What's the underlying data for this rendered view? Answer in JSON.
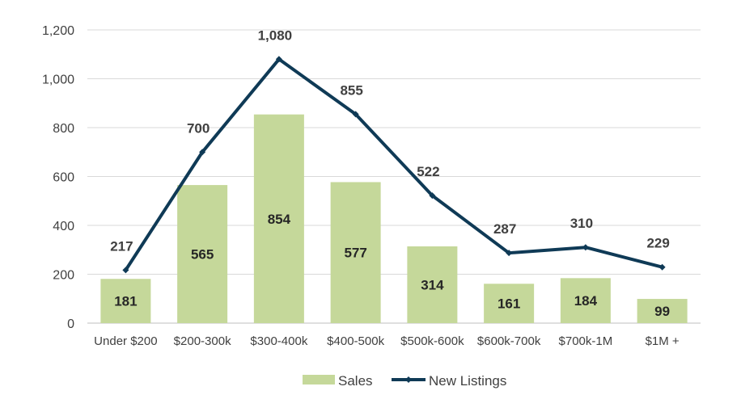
{
  "chart_data": {
    "type": "bar",
    "categories": [
      "Under $200",
      "$200-300k",
      "$300-400k",
      "$400-500k",
      "$500k-600k",
      "$600k-700k",
      "$700k-1M",
      "$1M +"
    ],
    "series": [
      {
        "name": "Sales",
        "type": "bar",
        "values": [
          181,
          565,
          854,
          577,
          314,
          161,
          184,
          99
        ],
        "color": "#c5d89a"
      },
      {
        "name": "New Listings",
        "type": "line",
        "values": [
          217,
          700,
          1080,
          855,
          522,
          287,
          310,
          229
        ],
        "color": "#0f3a56"
      }
    ],
    "value_labels": {
      "bars": [
        "181",
        "565",
        "854",
        "577",
        "314",
        "161",
        "184",
        "99"
      ],
      "line": [
        "217",
        "700",
        "1,080",
        "855",
        "522",
        "287",
        "310",
        "229"
      ]
    },
    "ylim": [
      0,
      1200
    ],
    "yticks": [
      "0",
      "200",
      "400",
      "600",
      "800",
      "1,000",
      "1,200"
    ],
    "grid": true,
    "legend_position": "bottom"
  },
  "legend": {
    "sales_label": "Sales",
    "listings_label": "New Listings"
  }
}
